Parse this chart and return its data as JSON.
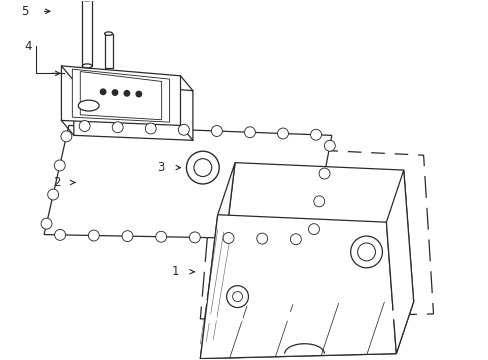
{
  "background_color": "#ffffff",
  "line_color": "#2a2a2a",
  "lw": 0.9,
  "figsize": [
    4.89,
    3.6
  ],
  "dpi": 100,
  "xlim": [
    0,
    9.78
  ],
  "ylim": [
    0,
    7.2
  ]
}
